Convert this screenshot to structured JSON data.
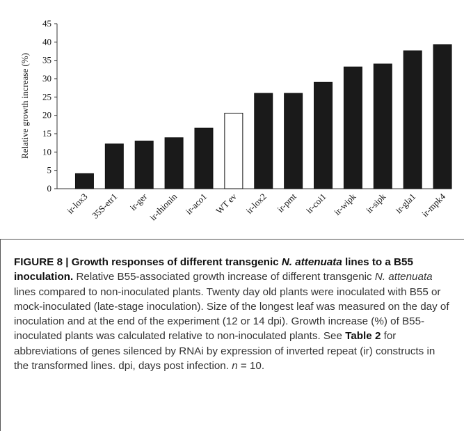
{
  "chart_data": {
    "type": "bar",
    "y_label": "Relative growth increase (%)",
    "categories": [
      "ir-lox3",
      "35S-etr1",
      "ir-ger",
      "ir-thionin",
      "ir-aco1",
      "WT ev",
      "ir-lox2",
      "ir-pmt",
      "ir-coi1",
      "ir-wipk",
      "ir-sipk",
      "ir-gla1",
      "ir-mpk4"
    ],
    "values": [
      4.1,
      12.2,
      13,
      13.9,
      16.5,
      20.6,
      26,
      26,
      29,
      33.2,
      34,
      37.6,
      39.3
    ],
    "colors": [
      "#1a1a1a",
      "#1a1a1a",
      "#1a1a1a",
      "#1a1a1a",
      "#1a1a1a",
      "#ffffff",
      "#1a1a1a",
      "#1a1a1a",
      "#1a1a1a",
      "#1a1a1a",
      "#1a1a1a",
      "#1a1a1a",
      "#1a1a1a"
    ],
    "ylim": [
      0,
      45
    ],
    "yticks": [
      0,
      5,
      10,
      15,
      20,
      25,
      30,
      35,
      40,
      45
    ],
    "grid": false
  },
  "caption": [
    {
      "text": "FIGURE 8 | Growth responses of different transgenic ",
      "style": "bold"
    },
    {
      "text": "N. attenuata",
      "style": "bold-italic"
    },
    {
      "text": " lines to a B55 inoculation.",
      "style": "bold"
    },
    {
      "text": " Relative B55-associated growth increase of different transgenic ",
      "style": "normal"
    },
    {
      "text": "N. attenuata",
      "style": "italic"
    },
    {
      "text": " lines compared to non-inoculated plants. Twenty day old plants were inoculated with B55 or mock-inoculated (late-stage inoculation). Size of the longest leaf was measured on the day of inoculation and at the end of the experiment (12 or 14 dpi). Growth increase (%) of B55-inoculated plants was calculated relative to non-inoculated plants. See ",
      "style": "normal"
    },
    {
      "text": "Table 2",
      "style": "bold"
    },
    {
      "text": " for abbreviations of genes silenced by RNAi by expression of inverted repeat (ir) constructs in the transformed lines. dpi, days post infection. ",
      "style": "normal"
    },
    {
      "text": "n",
      "style": "italic"
    },
    {
      "text": " = 10.",
      "style": "normal"
    }
  ]
}
